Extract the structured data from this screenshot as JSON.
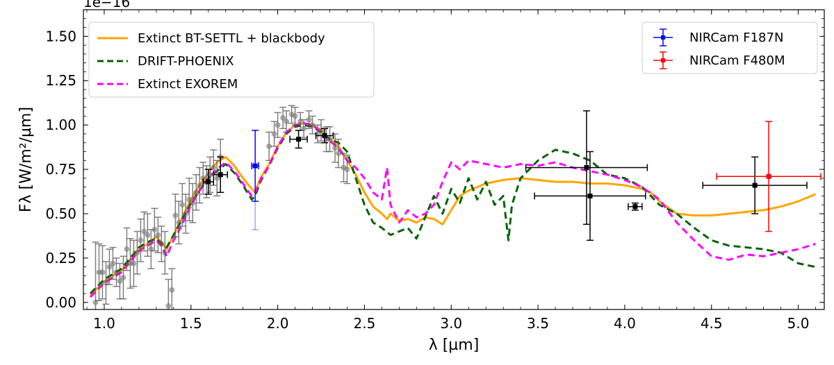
{
  "chart_data": {
    "type": "line",
    "xlabel": "λ [µm]",
    "ylabel": "Fλ [W/m²/µm]",
    "yoffset_label": "1e−16",
    "xlim": [
      0.88,
      5.15
    ],
    "ylim": [
      -0.04,
      1.65
    ],
    "xticks": [
      "1.0",
      "1.5",
      "2.0",
      "2.5",
      "3.0",
      "3.5",
      "4.0",
      "4.5",
      "5.0"
    ],
    "yticks": [
      "0.00",
      "0.25",
      "0.50",
      "0.75",
      "1.00",
      "1.25",
      "1.50"
    ],
    "grid": false,
    "legend_left": [
      "Extinct BT-SETTL + blackbody",
      "DRIFT-PHOENIX",
      "Extinct EXOREM"
    ],
    "legend_right": [
      "NIRCam F187N",
      "NIRCam F480M"
    ],
    "series": [
      {
        "name": "Extinct BT-SETTL + blackbody",
        "color": "#ffa500",
        "style": "solid",
        "x": [
          0.92,
          0.95,
          1.0,
          1.05,
          1.1,
          1.15,
          1.2,
          1.25,
          1.3,
          1.33,
          1.36,
          1.4,
          1.45,
          1.5,
          1.55,
          1.6,
          1.65,
          1.7,
          1.75,
          1.8,
          1.85,
          1.87,
          1.9,
          1.95,
          2.0,
          2.05,
          2.1,
          2.15,
          2.2,
          2.25,
          2.3,
          2.35,
          2.4,
          2.45,
          2.5,
          2.55,
          2.6,
          2.63,
          2.65,
          2.7,
          2.75,
          2.8,
          2.85,
          2.9,
          2.95,
          3.0,
          3.05,
          3.1,
          3.2,
          3.3,
          3.4,
          3.5,
          3.6,
          3.7,
          3.8,
          3.9,
          4.0,
          4.1,
          4.15,
          4.2,
          4.3,
          4.4,
          4.5,
          4.6,
          4.7,
          4.8,
          4.9,
          5.0,
          5.1
        ],
        "y": [
          0.04,
          0.07,
          0.12,
          0.15,
          0.18,
          0.24,
          0.3,
          0.33,
          0.37,
          0.34,
          0.3,
          0.38,
          0.48,
          0.58,
          0.66,
          0.73,
          0.79,
          0.82,
          0.77,
          0.7,
          0.64,
          0.62,
          0.7,
          0.78,
          0.88,
          0.96,
          1.0,
          1.01,
          1.0,
          0.97,
          0.92,
          0.88,
          0.8,
          0.72,
          0.62,
          0.54,
          0.5,
          0.47,
          0.5,
          0.46,
          0.47,
          0.45,
          0.48,
          0.47,
          0.44,
          0.52,
          0.6,
          0.63,
          0.67,
          0.69,
          0.7,
          0.69,
          0.68,
          0.68,
          0.67,
          0.67,
          0.66,
          0.64,
          0.62,
          0.57,
          0.5,
          0.49,
          0.49,
          0.5,
          0.51,
          0.52,
          0.54,
          0.57,
          0.61
        ]
      },
      {
        "name": "DRIFT-PHOENIX",
        "color": "#006400",
        "style": "dashed",
        "x": [
          0.92,
          0.95,
          1.0,
          1.05,
          1.1,
          1.15,
          1.2,
          1.25,
          1.3,
          1.33,
          1.36,
          1.4,
          1.45,
          1.5,
          1.55,
          1.6,
          1.65,
          1.7,
          1.75,
          1.8,
          1.85,
          1.87,
          1.9,
          1.95,
          2.0,
          2.05,
          2.1,
          2.15,
          2.2,
          2.25,
          2.3,
          2.35,
          2.4,
          2.45,
          2.5,
          2.55,
          2.6,
          2.65,
          2.7,
          2.75,
          2.8,
          2.85,
          2.9,
          2.95,
          3.0,
          3.05,
          3.1,
          3.15,
          3.2,
          3.25,
          3.3,
          3.33,
          3.35,
          3.4,
          3.5,
          3.6,
          3.7,
          3.8,
          3.9,
          4.0,
          4.1,
          4.2,
          4.3,
          4.4,
          4.5,
          4.6,
          4.7,
          4.8,
          4.9,
          5.0,
          5.1
        ],
        "y": [
          0.05,
          0.08,
          0.13,
          0.16,
          0.19,
          0.25,
          0.31,
          0.34,
          0.36,
          0.33,
          0.31,
          0.38,
          0.47,
          0.56,
          0.63,
          0.7,
          0.74,
          0.78,
          0.73,
          0.66,
          0.58,
          0.6,
          0.68,
          0.77,
          0.87,
          0.95,
          0.99,
          1.0,
          0.99,
          0.96,
          0.92,
          0.9,
          0.85,
          0.7,
          0.55,
          0.45,
          0.42,
          0.38,
          0.4,
          0.42,
          0.36,
          0.48,
          0.6,
          0.5,
          0.64,
          0.56,
          0.7,
          0.58,
          0.68,
          0.55,
          0.6,
          0.35,
          0.55,
          0.7,
          0.8,
          0.86,
          0.84,
          0.8,
          0.72,
          0.7,
          0.65,
          0.55,
          0.5,
          0.42,
          0.35,
          0.32,
          0.31,
          0.3,
          0.28,
          0.22,
          0.2
        ]
      },
      {
        "name": "Extinct EXOREM",
        "color": "#ff00ff",
        "style": "dashed",
        "x": [
          0.92,
          0.95,
          1.0,
          1.05,
          1.1,
          1.15,
          1.2,
          1.25,
          1.3,
          1.33,
          1.36,
          1.4,
          1.45,
          1.5,
          1.55,
          1.6,
          1.65,
          1.7,
          1.75,
          1.8,
          1.85,
          1.87,
          1.9,
          1.95,
          2.0,
          2.05,
          2.1,
          2.15,
          2.2,
          2.25,
          2.3,
          2.35,
          2.4,
          2.45,
          2.5,
          2.55,
          2.6,
          2.63,
          2.65,
          2.7,
          2.75,
          2.8,
          2.85,
          2.9,
          2.95,
          3.0,
          3.05,
          3.1,
          3.2,
          3.3,
          3.4,
          3.5,
          3.6,
          3.7,
          3.8,
          3.9,
          4.0,
          4.1,
          4.2,
          4.3,
          4.4,
          4.5,
          4.6,
          4.7,
          4.8,
          4.9,
          5.0,
          5.1
        ],
        "y": [
          0.03,
          0.06,
          0.11,
          0.14,
          0.17,
          0.23,
          0.29,
          0.32,
          0.35,
          0.32,
          0.26,
          0.35,
          0.44,
          0.55,
          0.63,
          0.7,
          0.75,
          0.79,
          0.74,
          0.67,
          0.6,
          0.62,
          0.69,
          0.77,
          0.88,
          0.96,
          1.0,
          1.01,
          1.0,
          0.96,
          0.91,
          0.87,
          0.8,
          0.76,
          0.7,
          0.62,
          0.58,
          0.76,
          0.55,
          0.45,
          0.52,
          0.48,
          0.5,
          0.55,
          0.68,
          0.79,
          0.75,
          0.8,
          0.78,
          0.76,
          0.78,
          0.77,
          0.79,
          0.76,
          0.74,
          0.72,
          0.69,
          0.65,
          0.58,
          0.45,
          0.35,
          0.26,
          0.24,
          0.27,
          0.26,
          0.28,
          0.3,
          0.33
        ]
      }
    ],
    "data_points": {
      "name": "gray spectrum points",
      "color": "#555555",
      "x": [
        0.95,
        0.97,
        0.99,
        1.01,
        1.03,
        1.05,
        1.07,
        1.09,
        1.11,
        1.13,
        1.15,
        1.17,
        1.19,
        1.21,
        1.23,
        1.25,
        1.27,
        1.29,
        1.31,
        1.33,
        1.35,
        1.37,
        1.39,
        1.41,
        1.43,
        1.45,
        1.47,
        1.49,
        1.51,
        1.53,
        1.55,
        1.57,
        1.59,
        1.61,
        1.63,
        1.65,
        1.67,
        1.95,
        1.98,
        2.0,
        2.03,
        2.05,
        2.08,
        2.1,
        2.13,
        2.15,
        2.18,
        2.2,
        2.23,
        2.25,
        2.28,
        2.3,
        2.33,
        2.35,
        2.38,
        2.4
      ],
      "y": [
        0.0,
        0.17,
        0.17,
        0.11,
        0.2,
        0.22,
        0.17,
        0.12,
        0.14,
        0.3,
        0.22,
        0.22,
        0.28,
        0.35,
        0.4,
        0.38,
        0.3,
        0.41,
        0.38,
        0.33,
        0.28,
        -0.02,
        0.07,
        0.49,
        0.45,
        0.55,
        0.5,
        0.58,
        0.56,
        0.62,
        0.66,
        0.7,
        0.68,
        0.72,
        0.76,
        0.7,
        0.82,
        0.88,
        0.95,
        1.0,
        1.04,
        1.02,
        1.06,
        1.05,
        1.02,
        0.98,
        1.03,
        1.0,
        0.95,
        0.97,
        0.92,
        0.92,
        0.87,
        0.84,
        0.76,
        0.75
      ],
      "err": [
        0.34,
        0.16,
        0.15,
        0.12,
        0.1,
        0.09,
        0.08,
        0.1,
        0.12,
        0.12,
        0.14,
        0.13,
        0.12,
        0.12,
        0.11,
        0.12,
        0.11,
        0.12,
        0.1,
        0.1,
        0.12,
        0.15,
        0.12,
        0.12,
        0.12,
        0.12,
        0.11,
        0.12,
        0.11,
        0.1,
        0.1,
        0.09,
        0.09,
        0.1,
        0.1,
        0.1,
        0.1,
        0.08,
        0.07,
        0.07,
        0.06,
        0.06,
        0.05,
        0.05,
        0.05,
        0.05,
        0.05,
        0.05,
        0.05,
        0.06,
        0.07,
        0.07,
        0.08,
        0.08,
        0.08,
        0.08
      ]
    },
    "photometry_black": [
      {
        "x": 1.6,
        "y": 0.68,
        "xerr": 0.03,
        "yerr": 0.07
      },
      {
        "x": 1.67,
        "y": 0.72,
        "xerr": 0.04,
        "yerr": 0.1
      },
      {
        "x": 2.12,
        "y": 0.92,
        "xerr": 0.05,
        "yerr": 0.05
      },
      {
        "x": 2.27,
        "y": 0.94,
        "xerr": 0.05,
        "yerr": 0.04
      },
      {
        "x": 3.78,
        "y": 0.76,
        "xerr": 0.35,
        "yerr": 0.32
      },
      {
        "x": 3.8,
        "y": 0.6,
        "xerr": 0.32,
        "yerr": 0.25
      },
      {
        "x": 4.06,
        "y": 0.54,
        "xerr": 0.04,
        "yerr": 0.02
      },
      {
        "x": 4.75,
        "y": 0.66,
        "xerr": 0.3,
        "yerr": 0.16
      }
    ],
    "photometry_blue": {
      "name": "NIRCam F187N",
      "color": "#0000ff",
      "x": 1.87,
      "y": 0.77,
      "xerr": 0.02,
      "yerr": 0.2,
      "yerr_faint": 0.36
    },
    "photometry_red": {
      "name": "NIRCam F480M",
      "color": "#ff0000",
      "x": 4.83,
      "y": 0.71,
      "xerr": 0.3,
      "yerr": 0.31
    }
  }
}
